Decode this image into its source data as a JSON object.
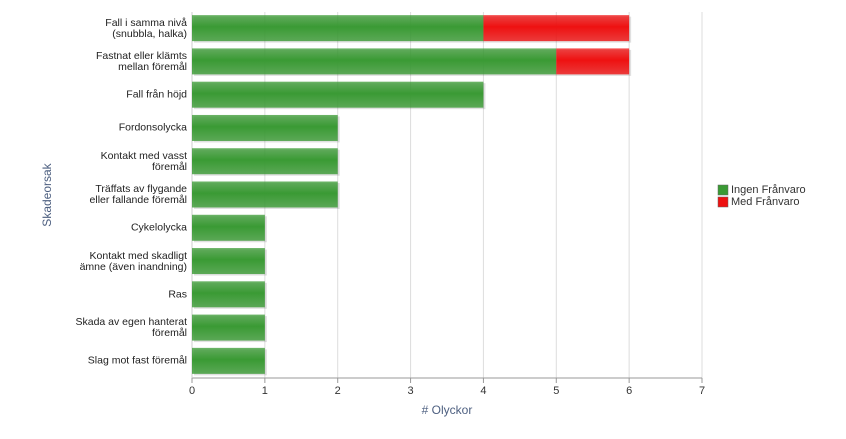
{
  "chart_data": {
    "type": "stacked-bar-horizontal",
    "categories": [
      "Fall i samma nivå\n(snubbla, halka)",
      "Fastnat eller klämts\nmellan föremål",
      "Fall från höjd",
      "Fordonsolycka",
      "Kontakt med vasst\nföremål",
      "Träffats av flygande\neller fallande föremål",
      "Cykelolycka",
      "Kontakt med skadligt\nämne (även inandning)",
      "Ras",
      "Skada av egen hanterat\nföremål",
      "Slag mot fast föremål"
    ],
    "series": [
      {
        "name": "Ingen Frånvaro",
        "color": "#3a9a34",
        "values": [
          4,
          5,
          4,
          2,
          2,
          2,
          1,
          1,
          1,
          1,
          1
        ]
      },
      {
        "name": "Med Frånvaro",
        "color": "#ee1111",
        "values": [
          2,
          1,
          0,
          0,
          0,
          0,
          0,
          0,
          0,
          0,
          0
        ]
      }
    ],
    "xlabel": "# Olyckor",
    "ylabel": "Skadeorsak",
    "xlim": [
      0,
      7
    ],
    "xticks": [
      0,
      1,
      2,
      3,
      4,
      5,
      6,
      7
    ],
    "grid": true,
    "legend": "right"
  }
}
